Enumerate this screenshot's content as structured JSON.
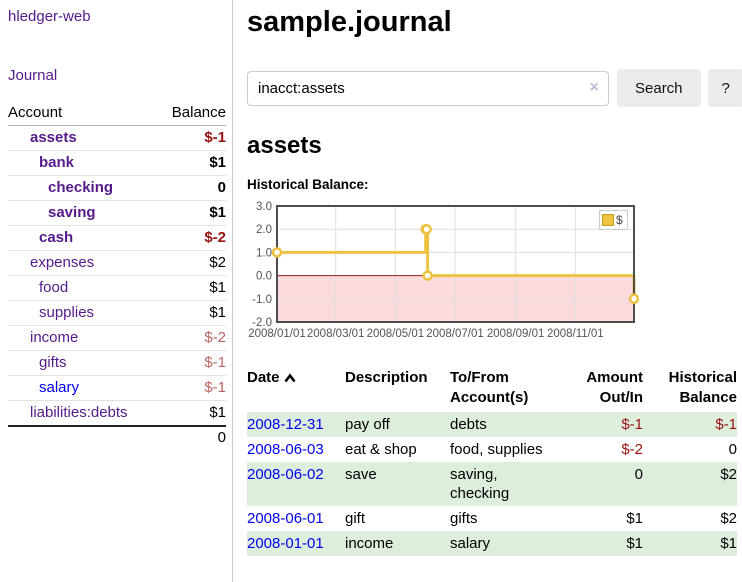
{
  "app": {
    "title": "hledger-web"
  },
  "sidebar": {
    "journal_link": "Journal",
    "accounts": {
      "headers": [
        "Account",
        "Balance"
      ],
      "rows": [
        {
          "account": "assets",
          "balance": "$-1",
          "depth": 1,
          "bold": true,
          "balance_class": "neg-strong",
          "link_color": "purple"
        },
        {
          "account": "bank",
          "balance": "$1",
          "depth": 2,
          "bold": true,
          "balance_class": "",
          "link_color": "purple"
        },
        {
          "account": "checking",
          "balance": "0",
          "depth": 3,
          "bold": true,
          "balance_class": "",
          "link_color": "purple"
        },
        {
          "account": "saving",
          "balance": "$1",
          "depth": 3,
          "bold": true,
          "balance_class": "",
          "link_color": "purple"
        },
        {
          "account": "cash",
          "balance": "$-2",
          "depth": 2,
          "bold": true,
          "balance_class": "neg-strong",
          "link_color": "purple"
        },
        {
          "account": "expenses",
          "balance": "$2",
          "depth": 1,
          "bold": false,
          "balance_class": "",
          "link_color": "purple"
        },
        {
          "account": "food",
          "balance": "$1",
          "depth": 2,
          "bold": false,
          "balance_class": "",
          "link_color": "purple"
        },
        {
          "account": "supplies",
          "balance": "$1",
          "depth": 2,
          "bold": false,
          "balance_class": "",
          "link_color": "purple"
        },
        {
          "account": "income",
          "balance": "$-2",
          "depth": 1,
          "bold": false,
          "balance_class": "neg-weak",
          "link_color": "purple"
        },
        {
          "account": "gifts",
          "balance": "$-1",
          "depth": 2,
          "bold": false,
          "balance_class": "neg-weak",
          "link_color": "purple"
        },
        {
          "account": "salary",
          "balance": "$-1",
          "depth": 2,
          "bold": false,
          "balance_class": "neg-weak",
          "link_color": "blue"
        },
        {
          "account": "liabilities:debts",
          "balance": "$1",
          "depth": 1,
          "bold": false,
          "balance_class": "",
          "link_color": "purple"
        }
      ],
      "total": "0"
    }
  },
  "main": {
    "title": "sample.journal",
    "search": {
      "value": "inacct:assets",
      "clear_icon": "×",
      "button_label": "Search",
      "help_label": "?"
    },
    "account_heading": "assets"
  },
  "chart_data": {
    "type": "line",
    "title": "Historical Balance:",
    "step": true,
    "series": [
      {
        "name": "$",
        "color": "#edc240",
        "points": [
          {
            "date": "2008-01-01",
            "value": 1
          },
          {
            "date": "2008-06-01",
            "value": 2
          },
          {
            "date": "2008-06-02",
            "value": 2
          },
          {
            "date": "2008-06-03",
            "value": 0
          },
          {
            "date": "2008-12-31",
            "value": -1
          }
        ]
      }
    ],
    "x_ticks": [
      {
        "label": "2008/01/01",
        "date": "2008-01-01"
      },
      {
        "label": "2008/03/01",
        "date": "2008-03-01"
      },
      {
        "label": "2008/05/01",
        "date": "2008-05-01"
      },
      {
        "label": "2008/07/01",
        "date": "2008-07-01"
      },
      {
        "label": "2008/09/01",
        "date": "2008-09-01"
      },
      {
        "label": "2008/11/01",
        "date": "2008-11-01"
      }
    ],
    "y_ticks": [
      {
        "label": "3.0",
        "value": 3
      },
      {
        "label": "2.0",
        "value": 2
      },
      {
        "label": "1.0",
        "value": 1
      },
      {
        "label": "0.0",
        "value": 0
      },
      {
        "label": "-1.0",
        "value": -1
      },
      {
        "label": "-2.0",
        "value": -2
      }
    ],
    "ylim": [
      -2,
      3
    ],
    "xlim": [
      "2008-01-01",
      "2008-12-31"
    ],
    "legend": {
      "label": "$",
      "position": "top-right"
    },
    "colors": {
      "negative_region": "#fbdbdb",
      "zero_line": "#8b1a1a",
      "grid": "#dedede",
      "border": "#4d4d4d",
      "axis_text": "#545454"
    }
  },
  "register": {
    "headers": {
      "date": "Date",
      "description": "Description",
      "accounts": "To/From\nAccount(s)",
      "amount": "Amount\nOut/In",
      "balance": "Historical\nBalance"
    },
    "sort": {
      "column": "date",
      "direction": "ascending"
    },
    "rows": [
      {
        "date": "2008-12-31",
        "description": "pay off",
        "accounts": "debts",
        "amount": "$-1",
        "amount_neg": true,
        "balance": "$-1",
        "balance_neg": true,
        "stripe": true
      },
      {
        "date": "2008-06-03",
        "description": "eat & shop",
        "accounts": "food, supplies",
        "amount": "$-2",
        "amount_neg": true,
        "balance": "0",
        "balance_neg": false,
        "stripe": false
      },
      {
        "date": "2008-06-02",
        "description": "save",
        "accounts": "saving,\nchecking",
        "amount": "0",
        "amount_neg": false,
        "balance": "$2",
        "balance_neg": false,
        "stripe": true
      },
      {
        "date": "2008-06-01",
        "description": "gift",
        "accounts": "gifts",
        "amount": "$1",
        "amount_neg": false,
        "balance": "$2",
        "balance_neg": false,
        "stripe": false
      },
      {
        "date": "2008-01-01",
        "description": "income",
        "accounts": "salary",
        "amount": "$1",
        "amount_neg": false,
        "balance": "$1",
        "balance_neg": false,
        "stripe": true
      }
    ]
  }
}
